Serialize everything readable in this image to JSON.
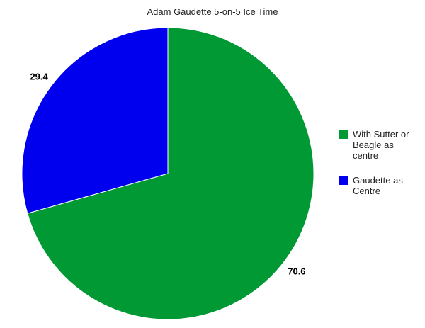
{
  "chart_data": {
    "type": "pie",
    "title": "Adam Gaudette 5-on-5 Ice Time",
    "slices": [
      {
        "name": "With Sutter or Beagle as centre",
        "value": 70.6,
        "label": "70.6",
        "color": "#009933"
      },
      {
        "name": "Gaudette as Centre",
        "value": 29.4,
        "label": "29.4",
        "color": "#0000EE"
      }
    ],
    "legend_position": "right",
    "start_angle": "top, clockwise"
  }
}
